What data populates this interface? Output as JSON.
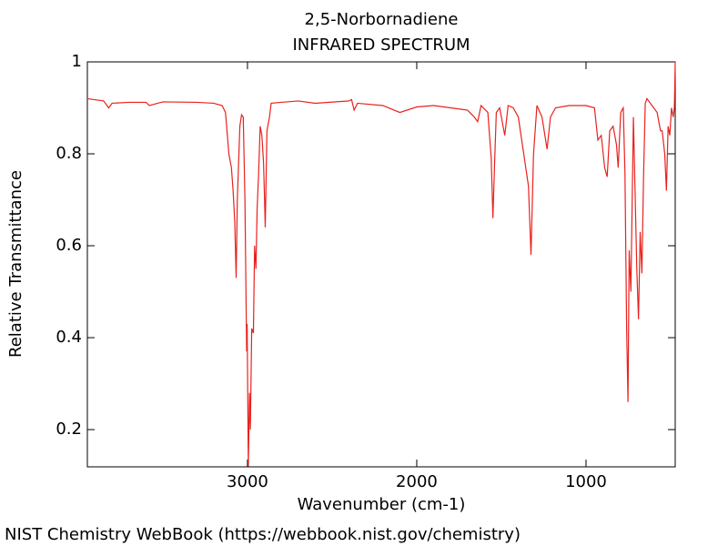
{
  "chart_data": {
    "type": "line",
    "title": "2,5-Norbornadiene",
    "subtitle": "INFRARED SPECTRUM",
    "x_label": "Wavenumber (cm-1)",
    "y_label": "Relative Transmittance",
    "source": "NIST Chemistry WebBook (https://webbook.nist.gov/chemistry)",
    "xlim": [
      3946,
      473
    ],
    "ylim": [
      0.119,
      1
    ],
    "xticks": [
      3000,
      2000,
      1000
    ],
    "yticks": [
      0.2,
      0.4,
      0.6,
      0.8,
      1
    ],
    "color": "#e8221e",
    "x": [
      3946,
      3850,
      3820,
      3800,
      3700,
      3600,
      3580,
      3500,
      3300,
      3200,
      3150,
      3130,
      3110,
      3095,
      3085,
      3075,
      3067,
      3060,
      3045,
      3035,
      3025,
      3015,
      3005,
      3002,
      2995,
      2988,
      2983,
      2975,
      2965,
      2958,
      2950,
      2943,
      2935,
      2925,
      2915,
      2905,
      2895,
      2885,
      2870,
      2860,
      2800,
      2700,
      2600,
      2400,
      2385,
      2370,
      2350,
      2200,
      2100,
      2000,
      1900,
      1800,
      1700,
      1660,
      1640,
      1620,
      1580,
      1560,
      1550,
      1540,
      1530,
      1510,
      1480,
      1460,
      1430,
      1400,
      1340,
      1325,
      1310,
      1290,
      1260,
      1230,
      1210,
      1180,
      1100,
      1000,
      950,
      930,
      910,
      890,
      875,
      860,
      840,
      820,
      810,
      795,
      780,
      770,
      760,
      752,
      745,
      735,
      720,
      700,
      690,
      680,
      670,
      660,
      650,
      640,
      620,
      600,
      580,
      560,
      550,
      535,
      525,
      515,
      505,
      495,
      485,
      478,
      473
    ],
    "values": [
      0.92,
      0.915,
      0.9,
      0.91,
      0.912,
      0.912,
      0.905,
      0.913,
      0.912,
      0.91,
      0.905,
      0.89,
      0.8,
      0.77,
      0.72,
      0.65,
      0.53,
      0.7,
      0.86,
      0.885,
      0.88,
      0.7,
      0.37,
      0.43,
      0.12,
      0.28,
      0.2,
      0.42,
      0.41,
      0.6,
      0.55,
      0.68,
      0.75,
      0.86,
      0.84,
      0.78,
      0.64,
      0.85,
      0.88,
      0.91,
      0.912,
      0.915,
      0.91,
      0.915,
      0.918,
      0.895,
      0.91,
      0.905,
      0.89,
      0.902,
      0.905,
      0.9,
      0.895,
      0.88,
      0.87,
      0.905,
      0.89,
      0.79,
      0.66,
      0.78,
      0.89,
      0.9,
      0.84,
      0.905,
      0.9,
      0.88,
      0.73,
      0.58,
      0.8,
      0.905,
      0.88,
      0.81,
      0.88,
      0.9,
      0.905,
      0.905,
      0.9,
      0.83,
      0.84,
      0.77,
      0.75,
      0.85,
      0.86,
      0.82,
      0.77,
      0.89,
      0.9,
      0.76,
      0.42,
      0.26,
      0.59,
      0.5,
      0.88,
      0.55,
      0.44,
      0.63,
      0.54,
      0.75,
      0.91,
      0.92,
      0.91,
      0.9,
      0.89,
      0.85,
      0.85,
      0.8,
      0.72,
      0.86,
      0.84,
      0.9,
      0.88,
      0.9,
      1.0
    ]
  }
}
